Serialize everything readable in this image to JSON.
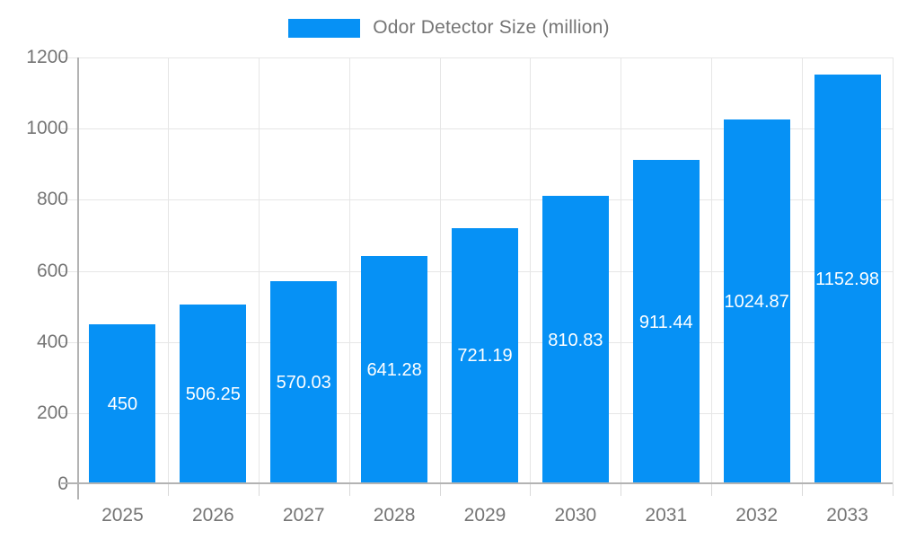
{
  "chart_data": {
    "type": "bar",
    "title": "Odor Detector Size (million)",
    "categories": [
      "2025",
      "2026",
      "2027",
      "2028",
      "2029",
      "2030",
      "2031",
      "2032",
      "2033"
    ],
    "series": [
      {
        "name": "Odor Detector Size (million)",
        "values": [
          450,
          506.25,
          570.03,
          641.28,
          721.19,
          810.83,
          911.44,
          1024.87,
          1152.98
        ]
      }
    ],
    "value_labels": [
      "450",
      "506.25",
      "570.03",
      "641.28",
      "721.19",
      "810.83",
      "911.44",
      "1024.87",
      "1152.98"
    ],
    "xlabel": "",
    "ylabel": "",
    "ylim": [
      0,
      1200
    ],
    "yticks": [
      0,
      200,
      400,
      600,
      800,
      1000,
      1200
    ],
    "grid": true,
    "legend_position": "top-center",
    "bar_color": "#0691f5",
    "bar_label_color": "#ffffff",
    "axis_text_color": "#757575",
    "gridline_color": "#e6e6e6",
    "axis_line_color": "#b3b3b3",
    "background_color": "#ffffff"
  }
}
